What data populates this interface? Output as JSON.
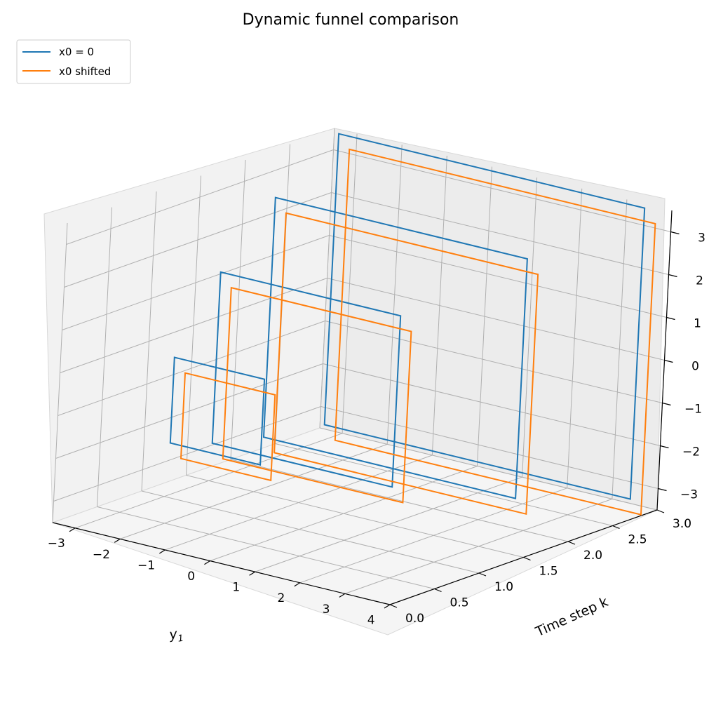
{
  "chart_data": {
    "type": "line",
    "projection": "3d",
    "title": "Dynamic funnel comparison",
    "xlabel": "y_1",
    "ylabel": "Time step k",
    "zlabel": "",
    "xlim": [
      -3.5,
      4.0
    ],
    "ylim": [
      0,
      3
    ],
    "zlim": [
      -3.5,
      3.5
    ],
    "x_ticks": [
      "−3",
      "−2",
      "−1",
      "0",
      "1",
      "2",
      "3",
      "4"
    ],
    "y_ticks": [
      "0.0",
      "0.5",
      "1.0",
      "1.5",
      "2.0",
      "2.5",
      "3.0"
    ],
    "z_ticks": [
      "3",
      "2",
      "1",
      "0",
      "−1",
      "−2",
      "−3"
    ],
    "grid": true,
    "legend_position": "top-left",
    "series": [
      {
        "name": "x0 = 0",
        "color": "#1f77b4",
        "rectangles": [
          {
            "k": 0,
            "y_min": -1.0,
            "y_max": 1.0,
            "z_min": -1.0,
            "z_max": 1.0
          },
          {
            "k": 1,
            "y_min": -2.0,
            "y_max": 2.0,
            "z_min": -2.0,
            "z_max": 2.0
          },
          {
            "k": 2,
            "y_min": -2.8,
            "y_max": 2.8,
            "z_min": -2.8,
            "z_max": 2.8
          },
          {
            "k": 3,
            "y_min": -3.4,
            "y_max": 3.4,
            "z_min": -3.4,
            "z_max": 3.4
          }
        ]
      },
      {
        "name": "x0 shifted",
        "color": "#ff7f0e",
        "rectangles": [
          {
            "k": 0,
            "y_min": -0.75,
            "y_max": 1.25,
            "z_min": -1.3,
            "z_max": 0.7
          },
          {
            "k": 1,
            "y_min": -1.75,
            "y_max": 2.25,
            "z_min": -2.3,
            "z_max": 1.7
          },
          {
            "k": 2,
            "y_min": -2.55,
            "y_max": 3.05,
            "z_min": -3.1,
            "z_max": 2.5
          },
          {
            "k": 3,
            "y_min": -3.15,
            "y_max": 3.65,
            "z_min": -3.7,
            "z_max": 3.1
          }
        ]
      }
    ]
  }
}
